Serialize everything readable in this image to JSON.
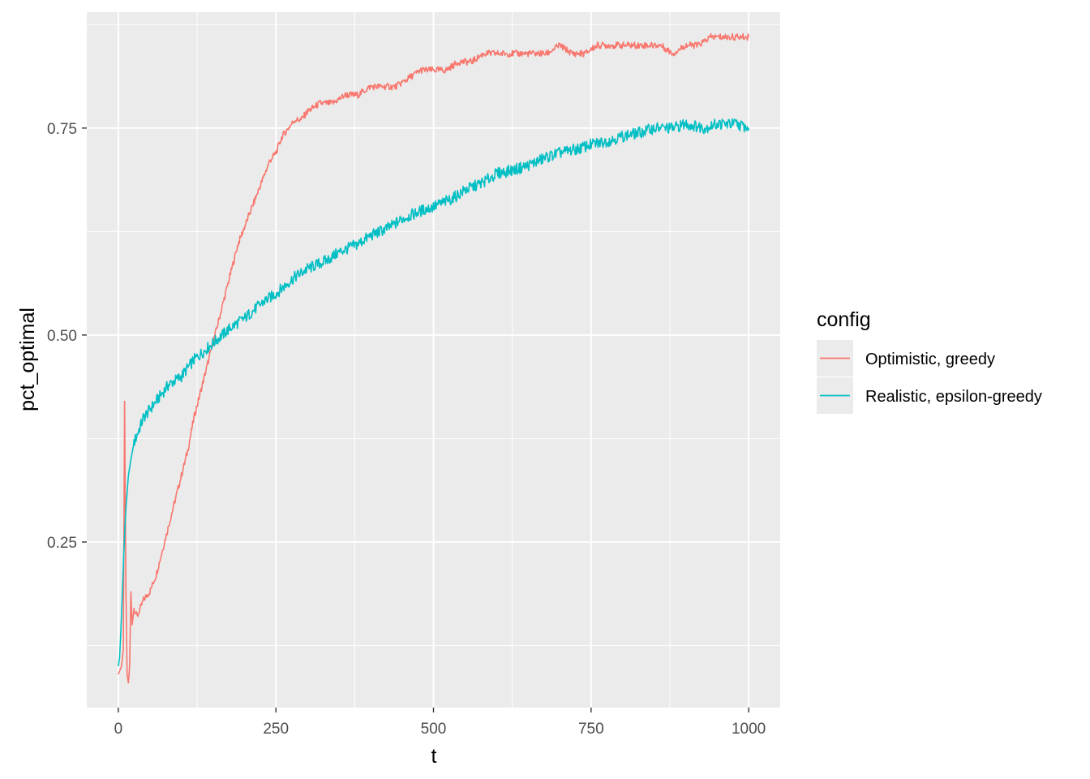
{
  "chart_data": {
    "type": "line",
    "title": "",
    "xlabel": "t",
    "ylabel": "pct_optimal",
    "xlim": [
      -50,
      1050
    ],
    "ylim": [
      0.05,
      0.89
    ],
    "x_ticks": [
      0,
      250,
      500,
      750,
      1000
    ],
    "x_tick_labels": [
      "0",
      "250",
      "500",
      "750",
      "1000"
    ],
    "y_ticks": [
      0.25,
      0.5,
      0.75
    ],
    "y_tick_labels": [
      "0.25",
      "0.50",
      "0.75"
    ],
    "grid": true,
    "background": "#ebebeb",
    "legend": {
      "title": "config",
      "position": "right"
    },
    "series": [
      {
        "name": "Optimistic, greedy",
        "color": "#f8766d",
        "x": [
          0,
          5,
          8,
          10,
          12,
          14,
          16,
          18,
          20,
          22,
          25,
          30,
          40,
          50,
          60,
          70,
          80,
          90,
          100,
          110,
          120,
          130,
          140,
          150,
          160,
          170,
          180,
          190,
          200,
          210,
          220,
          230,
          240,
          250,
          260,
          270,
          280,
          290,
          300,
          320,
          340,
          360,
          380,
          400,
          420,
          440,
          460,
          480,
          500,
          520,
          540,
          560,
          580,
          600,
          620,
          640,
          660,
          680,
          700,
          720,
          740,
          760,
          780,
          800,
          820,
          840,
          860,
          880,
          900,
          920,
          940,
          960,
          980,
          1000
        ],
        "y": [
          0.09,
          0.1,
          0.12,
          0.42,
          0.2,
          0.09,
          0.08,
          0.1,
          0.19,
          0.15,
          0.17,
          0.16,
          0.18,
          0.19,
          0.21,
          0.24,
          0.27,
          0.3,
          0.33,
          0.36,
          0.4,
          0.43,
          0.46,
          0.49,
          0.52,
          0.55,
          0.58,
          0.61,
          0.63,
          0.65,
          0.67,
          0.69,
          0.71,
          0.72,
          0.74,
          0.75,
          0.76,
          0.76,
          0.77,
          0.78,
          0.78,
          0.79,
          0.79,
          0.8,
          0.8,
          0.8,
          0.81,
          0.82,
          0.82,
          0.82,
          0.83,
          0.83,
          0.84,
          0.84,
          0.84,
          0.84,
          0.84,
          0.84,
          0.85,
          0.84,
          0.84,
          0.85,
          0.85,
          0.85,
          0.85,
          0.85,
          0.85,
          0.84,
          0.85,
          0.85,
          0.86,
          0.86,
          0.86,
          0.86
        ]
      },
      {
        "name": "Realistic, epsilon-greedy",
        "color": "#00bfc4",
        "x": [
          0,
          2,
          4,
          6,
          8,
          10,
          12,
          14,
          16,
          18,
          20,
          25,
          30,
          40,
          50,
          60,
          70,
          80,
          100,
          120,
          150,
          180,
          200,
          230,
          250,
          280,
          300,
          330,
          350,
          380,
          400,
          430,
          450,
          480,
          500,
          530,
          550,
          580,
          600,
          630,
          650,
          680,
          700,
          730,
          750,
          780,
          800,
          830,
          850,
          880,
          900,
          930,
          950,
          980,
          1000
        ],
        "y": [
          0.1,
          0.11,
          0.14,
          0.18,
          0.22,
          0.26,
          0.29,
          0.31,
          0.33,
          0.34,
          0.35,
          0.37,
          0.38,
          0.4,
          0.41,
          0.42,
          0.43,
          0.44,
          0.45,
          0.47,
          0.49,
          0.51,
          0.52,
          0.54,
          0.55,
          0.57,
          0.58,
          0.59,
          0.6,
          0.61,
          0.62,
          0.63,
          0.64,
          0.65,
          0.655,
          0.665,
          0.675,
          0.685,
          0.695,
          0.7,
          0.705,
          0.715,
          0.72,
          0.725,
          0.73,
          0.735,
          0.74,
          0.745,
          0.75,
          0.75,
          0.755,
          0.75,
          0.755,
          0.755,
          0.75
        ]
      }
    ]
  }
}
